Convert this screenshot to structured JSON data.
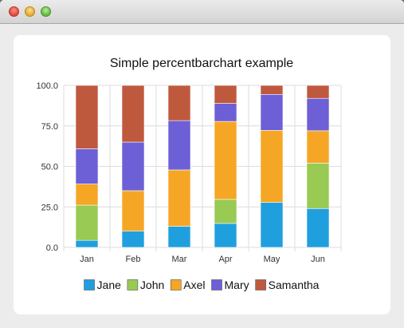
{
  "window": {
    "title": ""
  },
  "chart_data": {
    "type": "bar",
    "stacked": "percent",
    "title": "Simple percentbarchart example",
    "categories": [
      "Jan",
      "Feb",
      "Mar",
      "Apr",
      "May",
      "Jun"
    ],
    "series": [
      {
        "name": "Jane",
        "color": "#209fdf",
        "values": [
          1,
          2,
          3,
          4,
          5,
          6
        ]
      },
      {
        "name": "John",
        "color": "#99ca53",
        "values": [
          5,
          0,
          0,
          4,
          0,
          7
        ]
      },
      {
        "name": "Axel",
        "color": "#f6a625",
        "values": [
          3,
          5,
          8,
          13,
          8,
          5
        ]
      },
      {
        "name": "Mary",
        "color": "#6d5fd5",
        "values": [
          5,
          6,
          7,
          3,
          4,
          5
        ]
      },
      {
        "name": "Samantha",
        "color": "#bf593e",
        "values": [
          9,
          7,
          5,
          3,
          1,
          2
        ]
      }
    ],
    "ylim": [
      0,
      100
    ],
    "yticks": [
      "0.0",
      "25.0",
      "50.0",
      "75.0",
      "100.0"
    ],
    "xlabel": "",
    "ylabel": "",
    "grid": true,
    "legend": "bottom"
  }
}
